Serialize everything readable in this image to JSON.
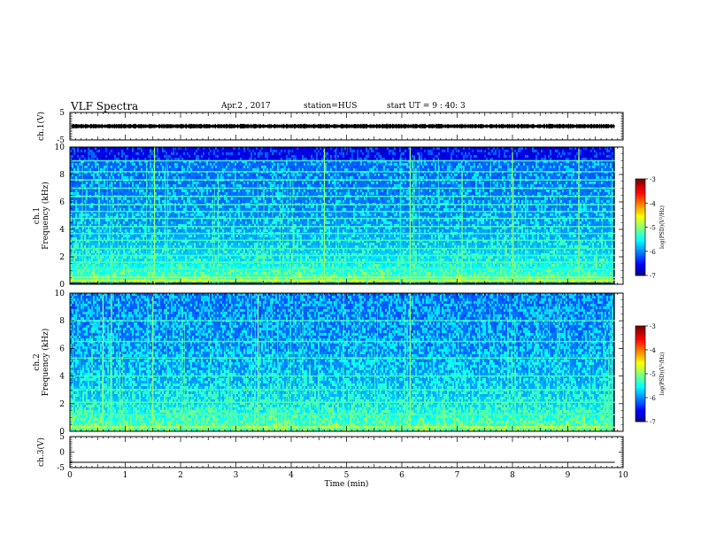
{
  "header": {
    "title": "VLF Spectra",
    "date": "Apr.2 , 2017",
    "station": "station=HUS",
    "start": "start UT = 9 : 40: 3"
  },
  "chart_data": [
    {
      "type": "line",
      "panel": "ch1-waveform",
      "ylabel": "ch.1(V)",
      "ylim": [
        -5,
        5
      ],
      "yticks": [
        "5",
        "-5"
      ],
      "xlim": [
        0,
        9.85
      ],
      "description_values": {
        "mean": 0,
        "amplitude": 0.4
      }
    },
    {
      "type": "heatmap",
      "panel": "ch1-spectrogram",
      "ylabel": "ch.1\nFrequency (kHz)",
      "ylim": [
        0,
        10
      ],
      "yticks": [
        "0",
        "2",
        "4",
        "6",
        "8",
        "10"
      ],
      "xlim": [
        0,
        9.85
      ],
      "colorbar": {
        "label": "log(PSD)(V²/Hz)",
        "range": [
          -7,
          -3
        ],
        "ticks": [
          "-3",
          "-4",
          "-5",
          "-6",
          "-7"
        ]
      },
      "horizontal_lines_khz": [
        0.3,
        0.5,
        1.1,
        1.6,
        2.1,
        2.6,
        3.2,
        3.7,
        4.2,
        4.8,
        5.3,
        5.8,
        6.4,
        7.0,
        7.6,
        8.2,
        9.0
      ],
      "bright_sferics_min": [
        1.53,
        4.6,
        6.15,
        8.0,
        9.2
      ]
    },
    {
      "type": "heatmap",
      "panel": "ch2-spectrogram",
      "ylabel": "ch.2\nFrequency (kHz)",
      "ylim": [
        0,
        10
      ],
      "yticks": [
        "0",
        "2",
        "4",
        "6",
        "8",
        "10"
      ],
      "xlim": [
        0,
        9.85
      ],
      "colorbar": {
        "label": "log(PSD)(V²/Hz)",
        "range": [
          -7,
          -3
        ],
        "ticks": [
          "-3",
          "-4",
          "-5",
          "-6",
          "-7"
        ]
      },
      "horizontal_lines_khz": [
        0.3,
        1.2,
        2.1,
        3.0,
        4.0,
        5.3,
        6.5,
        8.0
      ],
      "bright_sferics_min": [
        0.6,
        0.75,
        1.5,
        3.4,
        6.15
      ]
    },
    {
      "type": "line",
      "panel": "ch3-waveform",
      "ylabel": "ch.3(V)",
      "ylim": [
        -5,
        5
      ],
      "yticks": [
        "5",
        "0",
        "-5"
      ],
      "xlim": [
        0,
        9.85
      ],
      "description_values": {
        "mean": -3.3,
        "amplitude": 0
      }
    }
  ],
  "xaxis": {
    "label": "Time (min)",
    "ticks": [
      "0",
      "1",
      "2",
      "3",
      "4",
      "5",
      "6",
      "7",
      "8",
      "9",
      "10"
    ],
    "range": [
      0,
      10
    ]
  },
  "colors": {
    "ink": "#000000",
    "background": "#ffffff"
  }
}
